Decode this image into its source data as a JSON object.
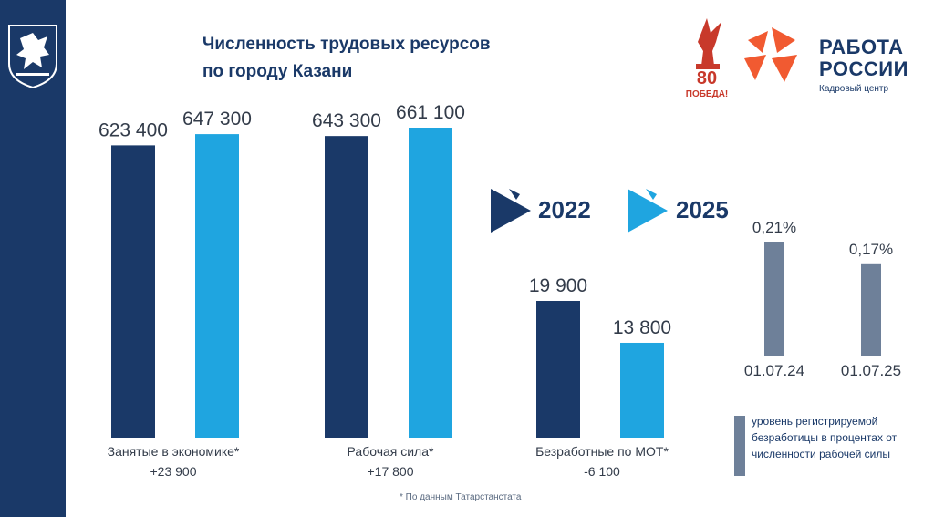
{
  "header": {
    "title_line1": "Численность трудовых ресурсов",
    "title_line2": "по городу Казани"
  },
  "logos": {
    "victory_text": "80 ПОБЕДА!",
    "rabota_line1": "РАБОТА",
    "rabota_line2": "РОССИИ",
    "rabota_sub": "Кадровый центр"
  },
  "legend": {
    "y2022": "2022",
    "y2025": "2025",
    "unemployment_note": "уровень регистрируемой безработицы в процентах от численности рабочей силы"
  },
  "footnote": "* По данным Татарстанстата",
  "groups": [
    {
      "label": "Занятые в экономике*",
      "change": "+23 900"
    },
    {
      "label": "Рабочая сила*",
      "change": "+17 800"
    },
    {
      "label": "Безработные по МОТ*",
      "change": "-6 100"
    }
  ],
  "colors": {
    "dark": "#1a3968",
    "light": "#1fa5e0",
    "gray": "#6e8099",
    "accent": "#f15a31"
  },
  "chart_data": [
    {
      "type": "bar",
      "categories": [
        "Занятые в экономике*",
        "Рабочая сила*",
        "Безработные по МОТ*"
      ],
      "series": [
        {
          "name": "2022",
          "values": [
            623400,
            643300,
            19900
          ],
          "labels": [
            "623 400",
            "643 300",
            "19 900"
          ]
        },
        {
          "name": "2025",
          "values": [
            647300,
            661100,
            13800
          ],
          "labels": [
            "647 300",
            "661 100",
            "13 800"
          ]
        }
      ]
    },
    {
      "type": "bar",
      "categories": [
        "01.07.24",
        "01.07.25"
      ],
      "values": [
        0.21,
        0.17
      ],
      "labels": [
        "0,21%",
        "0,17%"
      ]
    }
  ]
}
